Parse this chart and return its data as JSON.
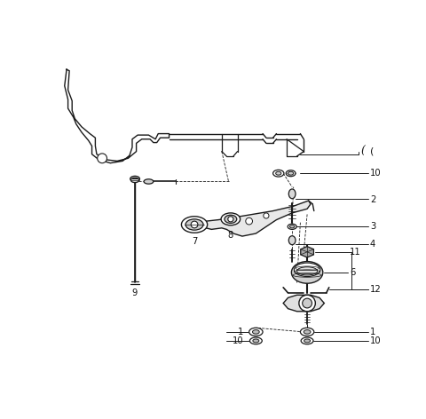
{
  "bg_color": "#ffffff",
  "line_color": "#1a1a1a",
  "label_color": "#111111",
  "figsize": [
    4.8,
    4.72
  ],
  "dpi": 100,
  "parts": {
    "cotter_pin_label": "(",
    "labels": [
      "10",
      "2",
      "3",
      "4",
      "11",
      "6",
      "12",
      "9",
      "7",
      "8",
      "1",
      "10",
      "1",
      "10"
    ]
  }
}
